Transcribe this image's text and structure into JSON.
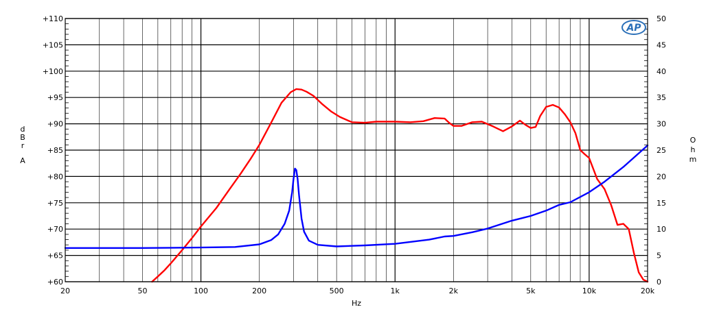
{
  "chart_data": {
    "type": "line",
    "x_scale": "log",
    "xlim": [
      20,
      20000
    ],
    "xlabel": "Hz",
    "x_ticks": [
      {
        "value": 20,
        "label": "20"
      },
      {
        "value": 50,
        "label": "50"
      },
      {
        "value": 100,
        "label": "100"
      },
      {
        "value": 200,
        "label": "200"
      },
      {
        "value": 500,
        "label": "500"
      },
      {
        "value": 1000,
        "label": "1k"
      },
      {
        "value": 2000,
        "label": "2k"
      },
      {
        "value": 5000,
        "label": "5k"
      },
      {
        "value": 10000,
        "label": "10k"
      },
      {
        "value": 20000,
        "label": "20k"
      }
    ],
    "y_left": {
      "label": "dBr A",
      "lim": [
        60,
        110
      ],
      "ticks": [
        "+60",
        "+65",
        "+70",
        "+75",
        "+80",
        "+85",
        "+90",
        "+95",
        "+100",
        "+105",
        "+110"
      ]
    },
    "y_right": {
      "label": "Ohm",
      "lim": [
        0,
        50
      ],
      "ticks": [
        "0",
        "5",
        "10",
        "15",
        "20",
        "25",
        "30",
        "35",
        "40",
        "45",
        "50"
      ]
    },
    "grid": true,
    "logo": "AP",
    "series": [
      {
        "axis": "left",
        "color": "#ff0000",
        "x": [
          56,
          60,
          65,
          70,
          80,
          90,
          100,
          120,
          140,
          160,
          180,
          200,
          230,
          260,
          290,
          310,
          330,
          350,
          380,
          420,
          470,
          520,
          600,
          700,
          800,
          900,
          1000,
          1200,
          1400,
          1600,
          1800,
          1900,
          2000,
          2200,
          2500,
          2800,
          3200,
          3600,
          4000,
          4400,
          4700,
          5000,
          5300,
          5600,
          6000,
          6500,
          7000,
          7500,
          8000,
          8500,
          9000,
          9500,
          10000,
          11000,
          12000,
          13000,
          14000,
          15000,
          16000,
          17000,
          18000,
          19000,
          20000
        ],
        "values": [
          60,
          61,
          62.2,
          63.5,
          66,
          68.3,
          70.5,
          74,
          77.5,
          80.5,
          83.3,
          86,
          90.2,
          94,
          96,
          96.6,
          96.5,
          96.1,
          95.3,
          93.8,
          92.3,
          91.3,
          90.3,
          90.2,
          90.4,
          90.4,
          90.4,
          90.3,
          90.5,
          91.1,
          91,
          90.2,
          89.6,
          89.6,
          90.3,
          90.4,
          89.5,
          88.6,
          89.5,
          90.6,
          89.8,
          89.2,
          89.4,
          91.5,
          93.2,
          93.6,
          93.1,
          91.8,
          90.3,
          88.2,
          85,
          84.2,
          83.5,
          79.5,
          77.6,
          74.5,
          70.8,
          71,
          70,
          65.5,
          61.8,
          60.4,
          60
        ]
      },
      {
        "axis": "right",
        "color": "#0000ff",
        "x": [
          20,
          50,
          100,
          150,
          200,
          230,
          250,
          270,
          285,
          295,
          300,
          305,
          310,
          315,
          320,
          330,
          340,
          360,
          400,
          500,
          700,
          1000,
          1500,
          1800,
          2000,
          2500,
          3000,
          4000,
          5000,
          6000,
          7000,
          8000,
          10000,
          12000,
          15000,
          20000
        ],
        "values": [
          6.4,
          6.4,
          6.5,
          6.6,
          7.1,
          7.9,
          9,
          11,
          13.5,
          17,
          19.5,
          21.5,
          21.2,
          19.5,
          16.5,
          12,
          9.5,
          7.8,
          7,
          6.7,
          6.9,
          7.2,
          8,
          8.6,
          8.7,
          9.4,
          10.1,
          11.6,
          12.5,
          13.5,
          14.6,
          15.1,
          17,
          19,
          21.8,
          25.9
        ]
      }
    ]
  }
}
